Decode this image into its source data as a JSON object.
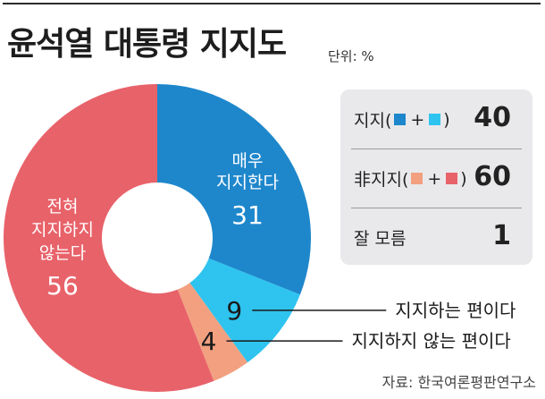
{
  "header": {
    "title": "윤석열 대통령 지지도",
    "unit": "단위: %"
  },
  "colors": {
    "strong_support": "#1e87cc",
    "mild_support": "#2ec4ef",
    "mild_oppose": "#f2a080",
    "strong_oppose": "#e8626a"
  },
  "chart_data": {
    "type": "pie",
    "title": "윤석열 대통령 지지도",
    "unit": "%",
    "donut": true,
    "slices": [
      {
        "label": "매우 지지한다",
        "value": 31,
        "color": "#1e87cc"
      },
      {
        "label": "지지하는 편이다",
        "value": 9,
        "color": "#2ec4ef"
      },
      {
        "label": "지지하지 않는 편이다",
        "value": 4,
        "color": "#f2a080"
      },
      {
        "label": "전혀 지지하지 않는다",
        "value": 56,
        "color": "#e8626a"
      }
    ],
    "inside_labels": {
      "strong_support": [
        "매우",
        "지지한다"
      ],
      "strong_oppose": [
        "전혀",
        "지지하지",
        "않는다"
      ]
    },
    "summary": [
      {
        "label": "지지",
        "value": 40
      },
      {
        "label": "非지지",
        "value": 60
      },
      {
        "label": "잘 모름",
        "value": 1
      }
    ]
  },
  "summary_panel": {
    "support_label": "지지(",
    "support_close": ")",
    "support_value": "40",
    "nonsupport_label": "非지지(",
    "nonsupport_close": ")",
    "nonsupport_value": "60",
    "unknown_label": "잘 모름",
    "unknown_value": "1",
    "plus": "+"
  },
  "source": "자료: 한국여론평판연구소"
}
